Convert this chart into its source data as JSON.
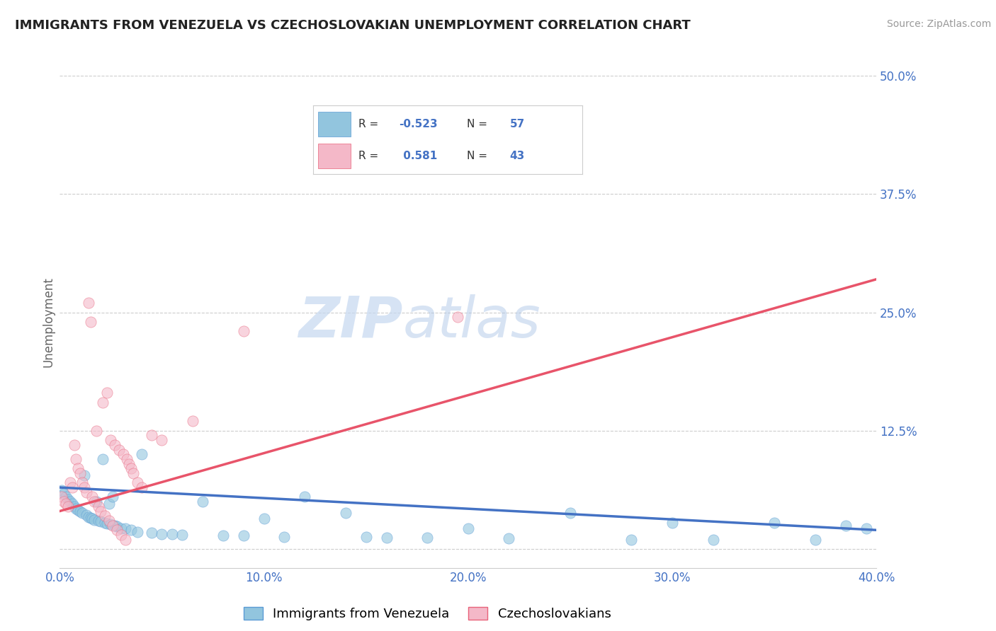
{
  "title": "IMMIGRANTS FROM VENEZUELA VS CZECHOSLOVAKIAN UNEMPLOYMENT CORRELATION CHART",
  "source": "Source: ZipAtlas.com",
  "ylabel": "Unemployment",
  "xlabel": "",
  "xlim": [
    0.0,
    0.4
  ],
  "ylim": [
    -0.02,
    0.5
  ],
  "xticks": [
    0.0,
    0.1,
    0.2,
    0.3,
    0.4
  ],
  "xtick_labels": [
    "0.0%",
    "10.0%",
    "20.0%",
    "30.0%",
    "40.0%"
  ],
  "yticks": [
    0.0,
    0.125,
    0.25,
    0.375,
    0.5
  ],
  "ytick_labels": [
    "",
    "12.5%",
    "25.0%",
    "37.5%",
    "50.0%"
  ],
  "grid_color": "#cccccc",
  "background_color": "#ffffff",
  "watermark_zip": "ZIP",
  "watermark_atlas": "atlas",
  "blue_color": "#92c5de",
  "pink_color": "#f4b8c8",
  "blue_edge_color": "#5b9bd5",
  "pink_edge_color": "#e8637a",
  "blue_line_color": "#4472c4",
  "pink_line_color": "#e8546a",
  "blue_R": -0.523,
  "blue_N": 57,
  "pink_R": 0.581,
  "pink_N": 43,
  "legend_label_blue": "Immigrants from Venezuela",
  "legend_label_pink": "Czechoslovakians",
  "tick_label_color": "#4472c4",
  "title_color": "#222222",
  "blue_scatter_x": [
    0.001,
    0.002,
    0.003,
    0.004,
    0.005,
    0.006,
    0.007,
    0.008,
    0.009,
    0.01,
    0.011,
    0.012,
    0.013,
    0.014,
    0.015,
    0.016,
    0.017,
    0.018,
    0.019,
    0.02,
    0.021,
    0.022,
    0.023,
    0.024,
    0.025,
    0.026,
    0.027,
    0.028,
    0.03,
    0.032,
    0.035,
    0.038,
    0.04,
    0.045,
    0.05,
    0.055,
    0.06,
    0.07,
    0.08,
    0.09,
    0.1,
    0.11,
    0.12,
    0.14,
    0.15,
    0.16,
    0.18,
    0.2,
    0.22,
    0.25,
    0.28,
    0.3,
    0.32,
    0.35,
    0.37,
    0.385,
    0.395
  ],
  "blue_scatter_y": [
    0.062,
    0.058,
    0.055,
    0.052,
    0.05,
    0.048,
    0.045,
    0.043,
    0.041,
    0.04,
    0.038,
    0.078,
    0.036,
    0.034,
    0.033,
    0.032,
    0.031,
    0.05,
    0.03,
    0.029,
    0.095,
    0.028,
    0.027,
    0.048,
    0.026,
    0.055,
    0.025,
    0.024,
    0.022,
    0.022,
    0.02,
    0.018,
    0.1,
    0.017,
    0.016,
    0.016,
    0.015,
    0.05,
    0.014,
    0.014,
    0.032,
    0.013,
    0.055,
    0.038,
    0.013,
    0.012,
    0.012,
    0.022,
    0.011,
    0.038,
    0.01,
    0.028,
    0.01,
    0.028,
    0.01,
    0.025,
    0.022
  ],
  "pink_scatter_x": [
    0.001,
    0.002,
    0.003,
    0.004,
    0.005,
    0.006,
    0.007,
    0.008,
    0.009,
    0.01,
    0.011,
    0.012,
    0.013,
    0.014,
    0.015,
    0.016,
    0.017,
    0.018,
    0.019,
    0.02,
    0.021,
    0.022,
    0.023,
    0.024,
    0.025,
    0.026,
    0.027,
    0.028,
    0.029,
    0.03,
    0.031,
    0.032,
    0.033,
    0.034,
    0.035,
    0.036,
    0.038,
    0.04,
    0.045,
    0.05,
    0.065,
    0.09,
    0.195
  ],
  "pink_scatter_y": [
    0.055,
    0.05,
    0.048,
    0.045,
    0.07,
    0.065,
    0.11,
    0.095,
    0.085,
    0.08,
    0.07,
    0.065,
    0.06,
    0.26,
    0.24,
    0.055,
    0.05,
    0.125,
    0.045,
    0.04,
    0.155,
    0.035,
    0.165,
    0.03,
    0.115,
    0.025,
    0.11,
    0.02,
    0.105,
    0.015,
    0.1,
    0.01,
    0.095,
    0.09,
    0.085,
    0.08,
    0.07,
    0.065,
    0.12,
    0.115,
    0.135,
    0.23,
    0.245
  ],
  "blue_trendline_x0": 0.0,
  "blue_trendline_y0": 0.065,
  "blue_trendline_x1": 0.4,
  "blue_trendline_y1": 0.02,
  "pink_trendline_x0": 0.0,
  "pink_trendline_y0": 0.04,
  "pink_trendline_x1": 0.4,
  "pink_trendline_y1": 0.285
}
